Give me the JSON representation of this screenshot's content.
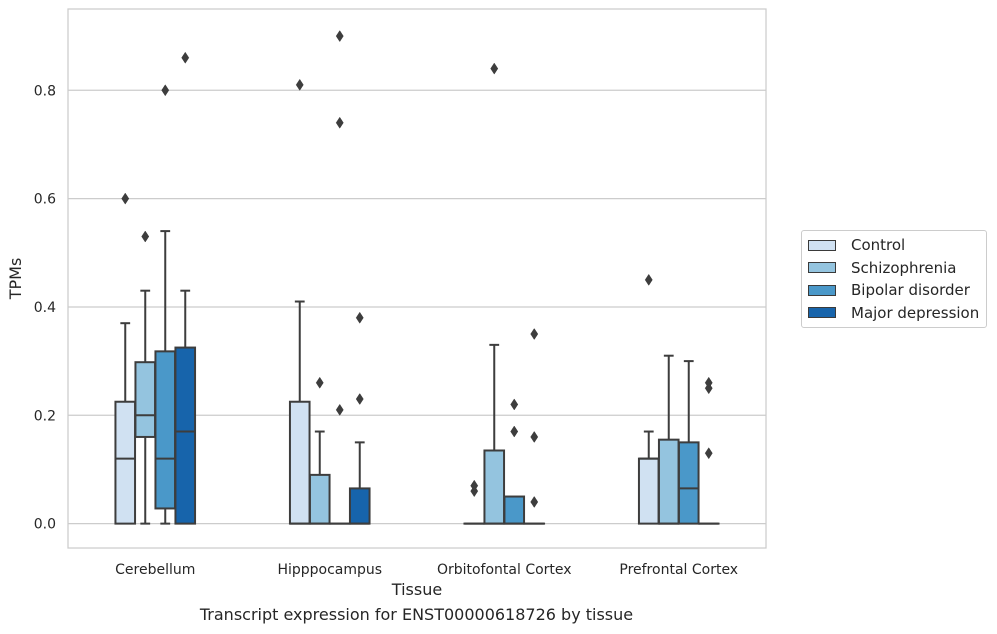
{
  "chart_data": {
    "type": "box",
    "xlabel": "Tissue",
    "ylabel": "TPMs",
    "caption": "Transcript expression for ENST00000618726 by tissue",
    "ylim": [
      -0.045,
      0.95
    ],
    "yticks": [
      "0.0",
      "0.2",
      "0.4",
      "0.6",
      "0.8"
    ],
    "grid": "horizontal",
    "legend_position": "right",
    "categories": [
      "Cerebellum",
      "Hipppocampus",
      "Orbitofontal Cortex",
      "Prefrontal Cortex"
    ],
    "series": [
      {
        "name": "Control",
        "color": "#d0e1f2",
        "boxes": [
          {
            "whislo": 0.0,
            "q1": 0.0,
            "med": 0.12,
            "q3": 0.225,
            "whishi": 0.37,
            "fliers": [
              0.6
            ]
          },
          {
            "whislo": 0.0,
            "q1": 0.0,
            "med": 0.0,
            "q3": 0.225,
            "whishi": 0.41,
            "fliers": [
              0.81
            ]
          },
          {
            "whislo": 0.0,
            "q1": 0.0,
            "med": 0.0,
            "q3": 0.0,
            "whishi": 0.0,
            "fliers": [
              0.06,
              0.07
            ]
          },
          {
            "whislo": 0.0,
            "q1": 0.0,
            "med": 0.12,
            "q3": 0.12,
            "whishi": 0.17,
            "fliers": [
              0.45
            ]
          }
        ]
      },
      {
        "name": "Schizophrenia",
        "color": "#94c4df",
        "boxes": [
          {
            "whislo": 0.0,
            "q1": 0.16,
            "med": 0.2,
            "q3": 0.298,
            "whishi": 0.43,
            "fliers": [
              0.53
            ]
          },
          {
            "whislo": 0.0,
            "q1": 0.0,
            "med": 0.0,
            "q3": 0.09,
            "whishi": 0.17,
            "fliers": [
              0.26
            ]
          },
          {
            "whislo": 0.0,
            "q1": 0.0,
            "med": 0.0,
            "q3": 0.135,
            "whishi": 0.33,
            "fliers": [
              0.84
            ]
          },
          {
            "whislo": 0.0,
            "q1": 0.0,
            "med": 0.0,
            "q3": 0.155,
            "whishi": 0.31,
            "fliers": []
          }
        ]
      },
      {
        "name": "Bipolar disorder",
        "color": "#4a98c9",
        "boxes": [
          {
            "whislo": 0.0,
            "q1": 0.028,
            "med": 0.12,
            "q3": 0.318,
            "whishi": 0.54,
            "fliers": [
              0.8
            ]
          },
          {
            "whislo": 0.0,
            "q1": 0.0,
            "med": 0.0,
            "q3": 0.0,
            "whishi": 0.0,
            "fliers": [
              0.21,
              0.74,
              0.9
            ]
          },
          {
            "whislo": 0.0,
            "q1": 0.0,
            "med": 0.0,
            "q3": 0.05,
            "whishi": 0.05,
            "fliers": [
              0.17,
              0.22
            ]
          },
          {
            "whislo": 0.0,
            "q1": 0.0,
            "med": 0.065,
            "q3": 0.15,
            "whishi": 0.3,
            "fliers": []
          }
        ]
      },
      {
        "name": "Major depression",
        "color": "#1764ab",
        "boxes": [
          {
            "whislo": 0.0,
            "q1": 0.0,
            "med": 0.17,
            "q3": 0.325,
            "whishi": 0.43,
            "fliers": [
              0.86
            ]
          },
          {
            "whislo": 0.0,
            "q1": 0.0,
            "med": 0.0,
            "q3": 0.065,
            "whishi": 0.15,
            "fliers": [
              0.23,
              0.38
            ]
          },
          {
            "whislo": 0.0,
            "q1": 0.0,
            "med": 0.0,
            "q3": 0.0,
            "whishi": 0.0,
            "fliers": [
              0.04,
              0.16,
              0.35
            ]
          },
          {
            "whislo": 0.0,
            "q1": 0.0,
            "med": 0.0,
            "q3": 0.0,
            "whishi": 0.0,
            "fliers": [
              0.13,
              0.25,
              0.26
            ]
          }
        ]
      }
    ]
  }
}
